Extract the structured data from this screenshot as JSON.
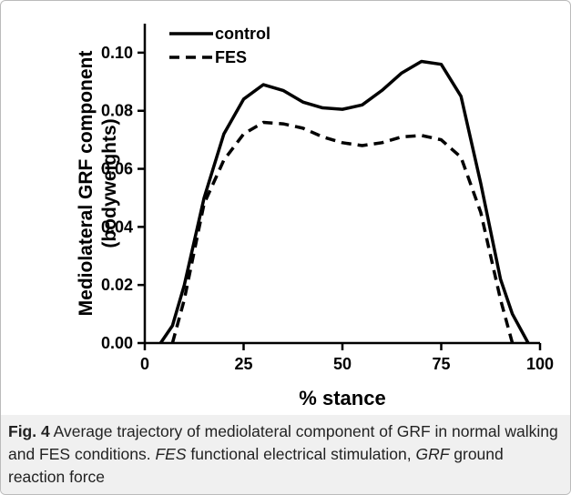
{
  "chart_data": {
    "type": "line",
    "xlabel": "% stance",
    "ylabel": [
      "Mediolateral GRF component",
      "(bodyweights)"
    ],
    "x": [
      4,
      7,
      10,
      15,
      20,
      25,
      30,
      35,
      40,
      45,
      50,
      55,
      60,
      65,
      70,
      75,
      80,
      85,
      90,
      93,
      97
    ],
    "series": [
      {
        "name": "control",
        "color": "#000000",
        "dash": false,
        "values": [
          0,
          0.006,
          0.02,
          0.05,
          0.072,
          0.084,
          0.089,
          0.087,
          0.083,
          0.081,
          0.0805,
          0.082,
          0.087,
          0.093,
          0.097,
          0.096,
          0.085,
          0.055,
          0.022,
          0.01,
          0
        ]
      },
      {
        "name": "FES",
        "color": "#000000",
        "dash": true,
        "values": [
          null,
          0,
          0.015,
          0.048,
          0.063,
          0.072,
          0.076,
          0.0755,
          0.074,
          0.071,
          0.069,
          0.068,
          0.069,
          0.071,
          0.0715,
          0.07,
          0.064,
          0.045,
          0.015,
          0,
          null
        ]
      }
    ],
    "xlim": [
      0,
      100
    ],
    "xticks": [
      0,
      25,
      50,
      75,
      100
    ],
    "ylim": [
      0,
      0.11
    ],
    "yticks": [
      {
        "value": 0,
        "label": "0.00"
      },
      0.02,
      0.04,
      0.06,
      0.08,
      {
        "value": 0.1,
        "label": "0.10"
      }
    ],
    "legend": "upper left"
  },
  "caption": {
    "label": "Fig. 4",
    "parts": [
      " Average trajectory of mediolateral component of GRF in normal walking and FES conditions. ",
      "FES",
      " functional electrical stimulation, ",
      "GRF",
      " ground reaction force"
    ]
  }
}
